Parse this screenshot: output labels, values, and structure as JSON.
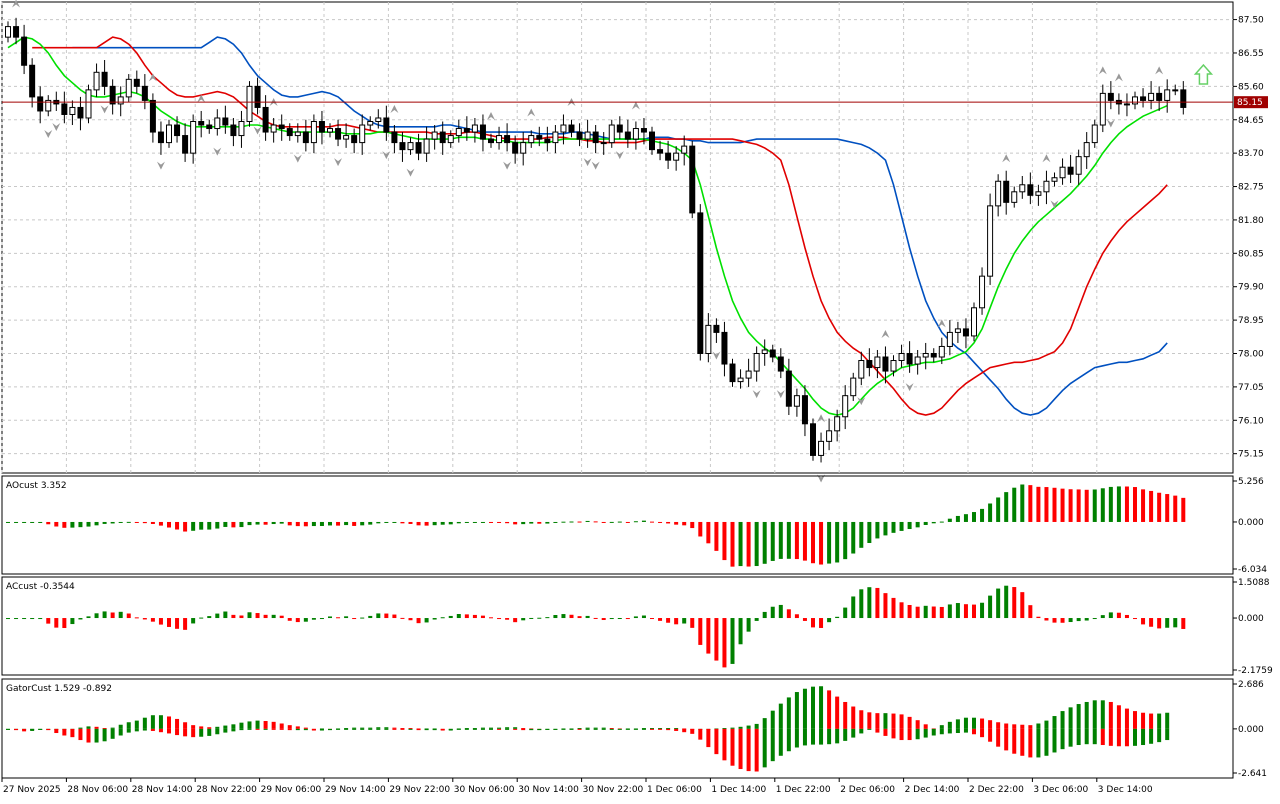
{
  "colors": {
    "bull": "#008000",
    "bear": "#ff0000",
    "ma_green": "#00e000",
    "ma_red": "#e00000",
    "ma_blue": "#0050c0",
    "price_line": "#a00000",
    "fractal": "#999999",
    "signal_arrow": "#66d066",
    "candle": "#000000"
  },
  "chart_data": [
    {
      "type": "candlestick",
      "name": "price",
      "current_price": "85.15",
      "ylim": [
        74.6,
        88.0
      ],
      "yticks": [
        "87.50",
        "86.55",
        "85.60",
        "84.65",
        "83.70",
        "82.75",
        "81.80",
        "80.85",
        "79.90",
        "78.95",
        "78.00",
        "77.05",
        "76.10",
        "75.15"
      ],
      "xlabels": [
        "27 Nov 2025",
        "28 Nov 06:00",
        "28 Nov 14:00",
        "28 Nov 22:00",
        "29 Nov 06:00",
        "29 Nov 14:00",
        "29 Nov 22:00",
        "30 Nov 06:00",
        "30 Nov 14:00",
        "30 Nov 22:00",
        "1 Dec 06:00",
        "1 Dec 14:00",
        "1 Dec 22:00",
        "2 Dec 06:00",
        "2 Dec 14:00",
        "2 Dec 22:00",
        "3 Dec 06:00",
        "3 Dec 14:00"
      ],
      "bars_per_label": 8,
      "close": [
        87.3,
        87.0,
        86.2,
        85.3,
        84.9,
        85.2,
        85.1,
        84.8,
        85.0,
        84.7,
        85.5,
        86.0,
        85.6,
        85.1,
        85.3,
        85.8,
        85.6,
        85.2,
        84.3,
        84.0,
        84.5,
        84.2,
        83.7,
        84.6,
        84.5,
        84.4,
        84.7,
        84.5,
        84.2,
        84.6,
        85.6,
        85.0,
        84.3,
        84.5,
        84.4,
        84.2,
        84.3,
        84.0,
        84.6,
        84.3,
        84.4,
        84.1,
        84.2,
        84.0,
        84.5,
        84.6,
        84.7,
        84.3,
        84.0,
        83.8,
        84.0,
        83.7,
        84.1,
        84.3,
        84.0,
        84.2,
        84.4,
        84.3,
        84.5,
        84.1,
        84.0,
        84.2,
        84.0,
        83.7,
        84.0,
        84.2,
        84.1,
        84.0,
        84.3,
        84.5,
        84.3,
        84.1,
        84.3,
        84.0,
        84.0,
        84.5,
        84.3,
        84.1,
        84.4,
        84.3,
        83.8,
        83.7,
        83.5,
        83.7,
        83.9,
        82.0,
        78.0,
        78.8,
        78.6,
        77.7,
        77.2,
        77.3,
        77.5,
        78.0,
        78.1,
        77.9,
        77.5,
        76.5,
        76.8,
        76.0,
        75.1,
        75.5,
        75.8,
        76.2,
        76.8,
        77.3,
        77.8,
        77.6,
        77.9,
        77.5,
        77.8,
        78.0,
        77.7,
        77.9,
        78.0,
        77.9,
        78.2,
        78.6,
        78.7,
        78.5,
        79.3,
        80.2,
        82.2,
        82.9,
        82.3,
        82.6,
        82.8,
        82.5,
        82.6,
        82.9,
        83.0,
        83.3,
        83.1,
        83.6,
        84.0,
        84.5,
        85.4,
        85.2,
        85.1,
        85.1,
        85.3,
        85.2,
        85.4,
        85.2,
        85.5,
        85.5,
        85.0
      ],
      "fractals_up": [
        1,
        18,
        24,
        33,
        48,
        60,
        65,
        70,
        78,
        101,
        109,
        116,
        124,
        129,
        136,
        138,
        143
      ],
      "fractals_down": [
        5,
        6,
        12,
        19,
        26,
        31,
        36,
        41,
        47,
        50,
        62,
        72,
        73,
        76,
        88,
        93,
        96,
        101,
        106,
        112,
        130,
        137
      ],
      "ma_green": [
        86.7,
        86.85,
        87.0,
        86.95,
        86.8,
        86.55,
        86.2,
        85.9,
        85.7,
        85.5,
        85.35,
        85.3,
        85.3,
        85.35,
        85.4,
        85.45,
        85.4,
        85.3,
        85.1,
        84.9,
        84.75,
        84.6,
        84.5,
        84.45,
        84.45,
        84.45,
        84.45,
        84.45,
        84.45,
        84.45,
        84.5,
        84.5,
        84.45,
        84.4,
        84.35,
        84.3,
        84.3,
        84.3,
        84.3,
        84.3,
        84.3,
        84.3,
        84.25,
        84.25,
        84.25,
        84.25,
        84.3,
        84.3,
        84.25,
        84.2,
        84.15,
        84.1,
        84.1,
        84.1,
        84.1,
        84.1,
        84.15,
        84.15,
        84.15,
        84.1,
        84.1,
        84.05,
        84.05,
        84.0,
        84.0,
        84.0,
        84.0,
        84.0,
        84.05,
        84.1,
        84.1,
        84.1,
        84.1,
        84.1,
        84.1,
        84.1,
        84.1,
        84.1,
        84.1,
        84.1,
        84.05,
        84.0,
        83.95,
        83.85,
        83.7,
        83.5,
        82.8,
        81.9,
        81.0,
        80.2,
        79.5,
        79.0,
        78.6,
        78.35,
        78.15,
        78.0,
        77.75,
        77.5,
        77.25,
        77.0,
        76.7,
        76.45,
        76.3,
        76.25,
        76.3,
        76.45,
        76.7,
        76.95,
        77.15,
        77.3,
        77.45,
        77.6,
        77.65,
        77.7,
        77.75,
        77.75,
        77.8,
        77.85,
        77.95,
        78.05,
        78.3,
        78.7,
        79.3,
        79.9,
        80.4,
        80.85,
        81.2,
        81.5,
        81.75,
        81.95,
        82.15,
        82.35,
        82.55,
        82.8,
        83.05,
        83.35,
        83.7,
        84.0,
        84.25,
        84.45,
        84.6,
        84.75,
        84.85,
        84.95,
        85.05
      ]
    },
    {
      "type": "histogram",
      "name": "AOcust",
      "label": "AOcust 3.352",
      "ylim": [
        -6.034,
        5.256
      ],
      "yticks": [
        "5.256",
        "0.000",
        "-6.034"
      ]
    },
    {
      "type": "histogram",
      "name": "ACcust",
      "label": "ACcust -0.3544",
      "ylim": [
        -2.1759,
        1.5088
      ],
      "yticks": [
        "1.5088",
        "0.000",
        "-2.1759"
      ]
    },
    {
      "type": "histogram",
      "name": "GatorCust",
      "label": "GatorCust 1.529 -0.892",
      "ylim": [
        -2.641,
        2.686
      ],
      "yticks": [
        "2.686",
        "0.000",
        "-2.641"
      ]
    }
  ]
}
